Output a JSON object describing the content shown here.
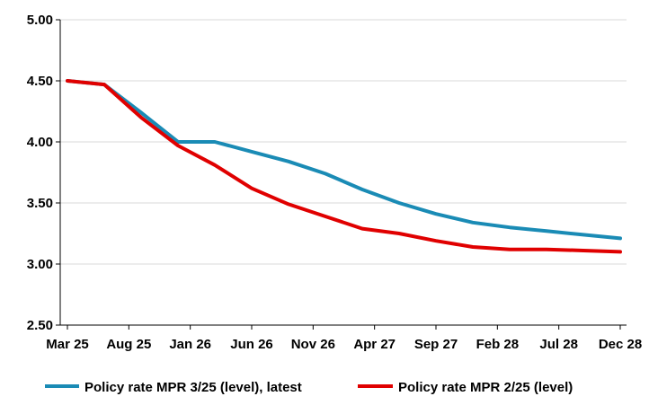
{
  "chart_data": {
    "type": "line",
    "title": "",
    "xlabel": "",
    "ylabel": "",
    "ylim": [
      2.5,
      5.0
    ],
    "yticks": [
      "2.50",
      "3.00",
      "3.50",
      "4.00",
      "4.50",
      "5.00"
    ],
    "ytick_values": [
      2.5,
      3.0,
      3.5,
      4.0,
      4.5,
      5.0
    ],
    "x_tick_labels": [
      "Mar 25",
      "Aug 25",
      "Jan 26",
      "Jun 26",
      "Nov 26",
      "Apr 27",
      "Sep 27",
      "Feb 28",
      "Jul 28",
      "Dec 28"
    ],
    "x": [
      "Mar 25",
      "Jun 25",
      "Sep 25",
      "Dec 25",
      "Mar 26",
      "Jun 26",
      "Sep 26",
      "Dec 26",
      "Mar 27",
      "Jun 27",
      "Sep 27",
      "Dec 27",
      "Mar 28",
      "Jun 28",
      "Sep 28",
      "Dec 28"
    ],
    "grid": true,
    "legend_position": "bottom",
    "series": [
      {
        "name": "Policy rate MPR  3/25 (level), latest",
        "color": "#1a8bb5",
        "values": [
          4.5,
          4.47,
          4.24,
          4.0,
          4.0,
          3.92,
          3.84,
          3.74,
          3.61,
          3.5,
          3.41,
          3.34,
          3.3,
          3.27,
          3.24,
          3.21
        ]
      },
      {
        "name": "Policy rate MPR  2/25 (level)",
        "color": "#e00000",
        "values": [
          4.5,
          4.47,
          4.2,
          3.97,
          3.81,
          3.62,
          3.49,
          3.39,
          3.29,
          3.25,
          3.19,
          3.14,
          3.12,
          3.12,
          3.11,
          3.1
        ]
      }
    ]
  }
}
